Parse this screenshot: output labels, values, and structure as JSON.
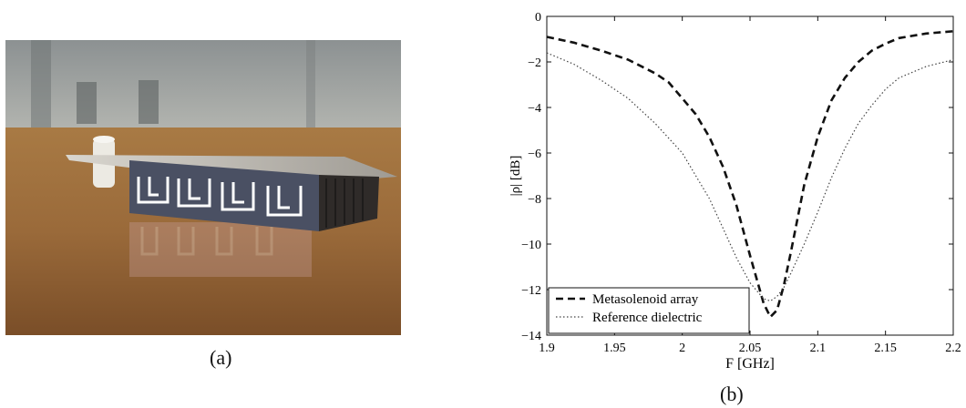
{
  "panels": {
    "a_label": "(a)",
    "b_label": "(b)"
  },
  "chart_data": {
    "type": "line",
    "title": "",
    "xlabel": "F [GHz]",
    "ylabel": "|ρ| [dB]",
    "xlim": [
      1.9,
      2.2
    ],
    "ylim": [
      -14,
      0
    ],
    "xticks": [
      1.9,
      1.95,
      2.0,
      2.05,
      2.1,
      2.15,
      2.2
    ],
    "xtick_labels": [
      "1.9",
      "1.95",
      "2",
      "2.05",
      "2.1",
      "2.15",
      "2.2"
    ],
    "yticks": [
      0,
      -2,
      -4,
      -6,
      -8,
      -10,
      -12,
      -14
    ],
    "ytick_labels": [
      "0",
      "−2",
      "−4",
      "−6",
      "−8",
      "−10",
      "−12",
      "−14"
    ],
    "grid": false,
    "legend_position": "bottom-left",
    "series": [
      {
        "name": "Metasolenoid array",
        "style": "dashed",
        "color": "#111111",
        "x": [
          1.9,
          1.92,
          1.94,
          1.96,
          1.98,
          1.99,
          2.0,
          2.01,
          2.02,
          2.03,
          2.04,
          2.05,
          2.06,
          2.065,
          2.07,
          2.075,
          2.08,
          2.09,
          2.1,
          2.11,
          2.12,
          2.13,
          2.14,
          2.15,
          2.16,
          2.18,
          2.2
        ],
        "y": [
          -0.9,
          -1.15,
          -1.5,
          -1.9,
          -2.5,
          -2.9,
          -3.6,
          -4.3,
          -5.3,
          -6.6,
          -8.3,
          -10.5,
          -12.6,
          -13.2,
          -12.9,
          -11.8,
          -10.4,
          -7.4,
          -5.3,
          -3.7,
          -2.7,
          -2.0,
          -1.5,
          -1.2,
          -0.95,
          -0.75,
          -0.65
        ]
      },
      {
        "name": "Reference dielectric",
        "style": "dotted",
        "color": "#444444",
        "x": [
          1.9,
          1.92,
          1.94,
          1.96,
          1.98,
          2.0,
          2.01,
          2.02,
          2.03,
          2.04,
          2.05,
          2.06,
          2.065,
          2.07,
          2.075,
          2.08,
          2.09,
          2.1,
          2.11,
          2.12,
          2.13,
          2.14,
          2.15,
          2.16,
          2.18,
          2.2
        ],
        "y": [
          -1.6,
          -2.1,
          -2.8,
          -3.6,
          -4.7,
          -6.0,
          -7.0,
          -8.0,
          -9.3,
          -10.6,
          -11.7,
          -12.4,
          -12.5,
          -12.3,
          -11.9,
          -11.3,
          -10.0,
          -8.6,
          -7.1,
          -5.8,
          -4.7,
          -3.9,
          -3.2,
          -2.7,
          -2.2,
          -1.9
        ]
      }
    ]
  }
}
